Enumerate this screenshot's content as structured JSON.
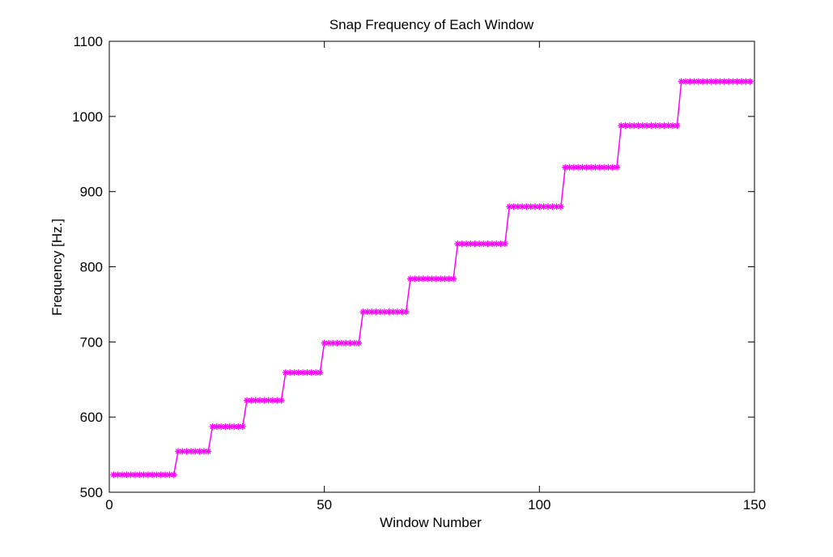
{
  "chart_data": {
    "type": "line",
    "title": "Snap Frequency of Each Window",
    "xlabel": "Window Number",
    "ylabel": "Frequency [Hz.]",
    "xlim": [
      0,
      150
    ],
    "ylim": [
      500,
      1100
    ],
    "xticks": [
      0,
      50,
      100,
      150
    ],
    "yticks": [
      500,
      600,
      700,
      800,
      900,
      1000,
      1100
    ],
    "grid": false,
    "legend": "none",
    "series": [
      {
        "color": "#ff00ff",
        "marker": "asterisk",
        "steps": [
          {
            "x_start": 1,
            "x_end": 15,
            "y": 523.25
          },
          {
            "x_start": 16,
            "x_end": 23,
            "y": 554.37
          },
          {
            "x_start": 24,
            "x_end": 31,
            "y": 587.33
          },
          {
            "x_start": 32,
            "x_end": 40,
            "y": 622.25
          },
          {
            "x_start": 41,
            "x_end": 49,
            "y": 659.26
          },
          {
            "x_start": 50,
            "x_end": 58,
            "y": 698.46
          },
          {
            "x_start": 59,
            "x_end": 69,
            "y": 739.99
          },
          {
            "x_start": 70,
            "x_end": 80,
            "y": 783.99
          },
          {
            "x_start": 81,
            "x_end": 92,
            "y": 830.61
          },
          {
            "x_start": 93,
            "x_end": 105,
            "y": 880.0
          },
          {
            "x_start": 106,
            "x_end": 118,
            "y": 932.33
          },
          {
            "x_start": 119,
            "x_end": 132,
            "y": 987.77
          },
          {
            "x_start": 133,
            "x_end": 149,
            "y": 1046.5
          }
        ]
      }
    ]
  }
}
